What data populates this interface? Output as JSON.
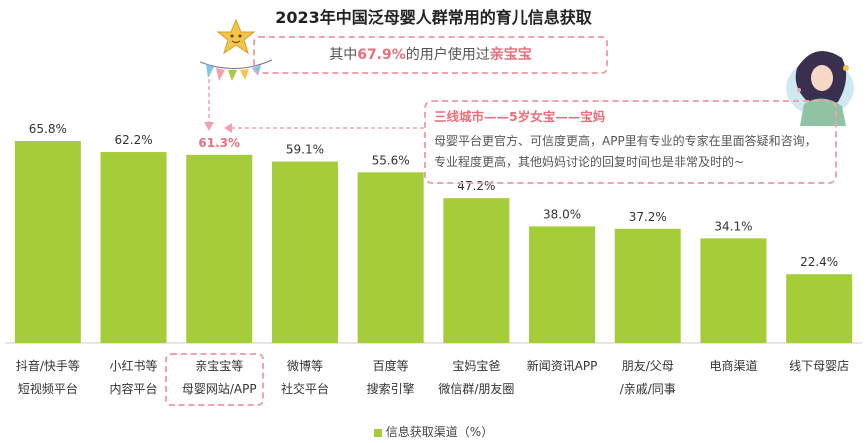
{
  "title": "2023年中国泛母婴人群常用的育儿信息获取",
  "callout_top": {
    "prefix": "其中",
    "value": "67.9%",
    "middle": "的用户使用过",
    "brand": "亲宝宝"
  },
  "callout_quote": {
    "heading": "三线城市——5岁女宝——宝妈",
    "body": "母婴平台更官方、可信度更高，APP里有专业的专家在里面答疑和咨询，专业程度更高，其他妈妈讨论的回复时间也是非常及时的~"
  },
  "legend_label": "信息获取渠道（%）",
  "colors": {
    "bar": "#a5cd3a",
    "highlight": "#e8707c",
    "dash": "#f0a3ad"
  },
  "chart_data": {
    "type": "bar",
    "title": "2023年中国泛母婴人群常用的育儿信息获取",
    "categories": [
      [
        "抖音/快手等",
        "短视频平台"
      ],
      [
        "小红书等",
        "内容平台"
      ],
      [
        "亲宝宝等",
        "母婴网站/APP"
      ],
      [
        "微博等",
        "社交平台"
      ],
      [
        "百度等",
        "搜索引擎"
      ],
      [
        "宝妈宝爸",
        "微信群/朋友圈"
      ],
      [
        "新闻资讯APP"
      ],
      [
        "朋友/父母",
        "/亲戚/同事"
      ],
      [
        "电商渠道"
      ],
      [
        "线下母婴店"
      ]
    ],
    "series": [
      {
        "name": "信息获取渠道（%）",
        "values": [
          65.8,
          62.2,
          61.3,
          59.1,
          55.6,
          47.2,
          38.0,
          37.2,
          34.1,
          22.4
        ]
      }
    ],
    "value_labels": [
      "65.8%",
      "62.2%",
      "61.3%",
      "59.1%",
      "55.6%",
      "47.2%",
      "38.0%",
      "37.2%",
      "34.1%",
      "22.4%"
    ],
    "highlight_index": 2,
    "ylim": [
      0,
      75
    ],
    "grid": false,
    "legend_position": "bottom"
  }
}
